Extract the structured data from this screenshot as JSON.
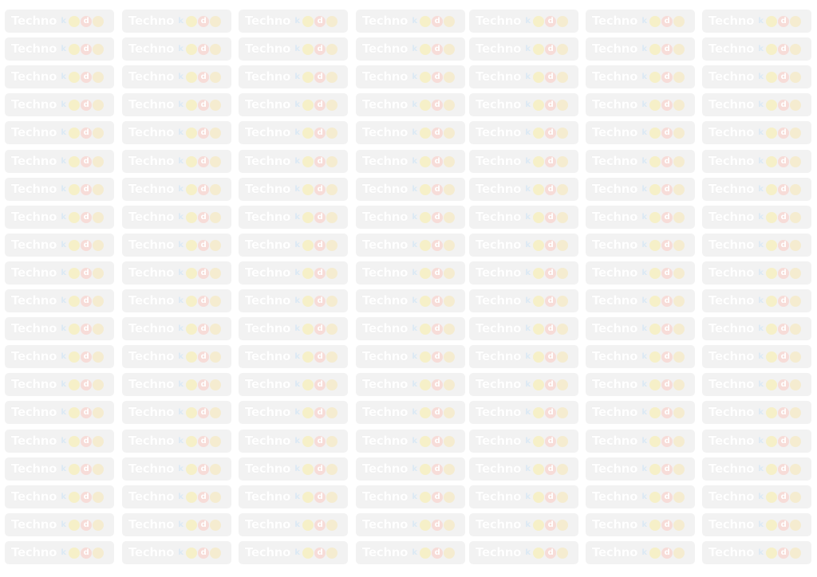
{
  "logo": {
    "word": "Techno",
    "balls": [
      {
        "label": "k",
        "shape": "letter",
        "color": "#dbe9f4"
      },
      {
        "label": "",
        "shape": "round",
        "color": "#f6f0c8"
      },
      {
        "label": "d",
        "shape": "round",
        "color": "#f7dcd8"
      },
      {
        "label": "",
        "shape": "round",
        "color": "#f5ecd0"
      }
    ]
  },
  "grid": {
    "columns": 7,
    "rows": 20
  },
  "colors": {
    "background": "#ffffff",
    "tile": "#f2f2f2",
    "text": "#ffffff"
  }
}
